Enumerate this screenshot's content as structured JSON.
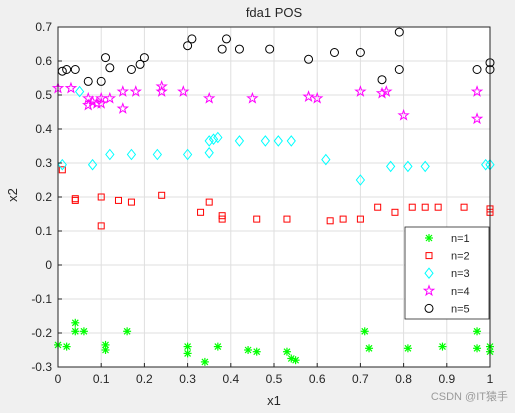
{
  "chart_data": {
    "type": "scatter",
    "title": "fda1 POS",
    "xlabel": "x1",
    "ylabel": "x2",
    "xlim": [
      0,
      1
    ],
    "ylim": [
      -0.3,
      0.7
    ],
    "xticks": [
      "0",
      "0.1",
      "0.2",
      "0.3",
      "0.4",
      "0.5",
      "0.6",
      "0.7",
      "0.8",
      "0.9",
      "1"
    ],
    "yticks": [
      "-0.3",
      "-0.2",
      "-0.1",
      "0",
      "0.1",
      "0.2",
      "0.3",
      "0.4",
      "0.5",
      "0.6",
      "0.7"
    ],
    "grid": true,
    "legend_position": "lower-right",
    "series": [
      {
        "name": "n=1",
        "marker": "asterisk",
        "color": "#00ff00",
        "x": [
          0.0,
          0.02,
          0.04,
          0.04,
          0.06,
          0.11,
          0.11,
          0.16,
          0.3,
          0.3,
          0.34,
          0.37,
          0.44,
          0.46,
          0.53,
          0.54,
          0.55,
          0.71,
          0.72,
          0.81,
          0.89,
          0.97,
          0.97,
          1.0,
          1.0
        ],
        "y": [
          -0.235,
          -0.24,
          -0.17,
          -0.195,
          -0.195,
          -0.235,
          -0.25,
          -0.195,
          -0.24,
          -0.26,
          -0.285,
          -0.24,
          -0.25,
          -0.255,
          -0.255,
          -0.275,
          -0.28,
          -0.195,
          -0.245,
          -0.245,
          -0.24,
          -0.195,
          -0.245,
          -0.24,
          -0.255
        ]
      },
      {
        "name": "n=2",
        "marker": "square",
        "color": "#ff0000",
        "x": [
          0.01,
          0.04,
          0.04,
          0.1,
          0.1,
          0.14,
          0.17,
          0.24,
          0.33,
          0.35,
          0.38,
          0.38,
          0.46,
          0.53,
          0.63,
          0.66,
          0.7,
          0.74,
          0.78,
          0.82,
          0.85,
          0.88,
          0.94,
          1.0,
          1.0
        ],
        "y": [
          0.28,
          0.19,
          0.195,
          0.115,
          0.2,
          0.19,
          0.185,
          0.205,
          0.155,
          0.185,
          0.135,
          0.145,
          0.135,
          0.135,
          0.13,
          0.135,
          0.135,
          0.17,
          0.155,
          0.17,
          0.17,
          0.17,
          0.17,
          0.155,
          0.165
        ]
      },
      {
        "name": "n=3",
        "marker": "diamond",
        "color": "#00ffff",
        "x": [
          0.01,
          0.05,
          0.08,
          0.12,
          0.17,
          0.23,
          0.3,
          0.35,
          0.35,
          0.36,
          0.37,
          0.42,
          0.48,
          0.51,
          0.54,
          0.62,
          0.7,
          0.77,
          0.81,
          0.85,
          0.99,
          1.0
        ],
        "y": [
          0.295,
          0.51,
          0.295,
          0.325,
          0.325,
          0.325,
          0.325,
          0.365,
          0.33,
          0.37,
          0.375,
          0.365,
          0.365,
          0.365,
          0.365,
          0.31,
          0.25,
          0.29,
          0.29,
          0.29,
          0.295,
          0.295
        ]
      },
      {
        "name": "n=4",
        "marker": "pentagram",
        "color": "#ff00ff",
        "x": [
          0.0,
          0.03,
          0.07,
          0.07,
          0.08,
          0.09,
          0.1,
          0.1,
          0.12,
          0.15,
          0.15,
          0.18,
          0.24,
          0.24,
          0.29,
          0.35,
          0.45,
          0.58,
          0.6,
          0.7,
          0.75,
          0.76,
          0.8,
          0.97,
          0.97
        ],
        "y": [
          0.52,
          0.52,
          0.47,
          0.49,
          0.48,
          0.475,
          0.475,
          0.49,
          0.49,
          0.46,
          0.51,
          0.51,
          0.525,
          0.51,
          0.51,
          0.49,
          0.49,
          0.495,
          0.49,
          0.51,
          0.505,
          0.51,
          0.44,
          0.51,
          0.43
        ]
      },
      {
        "name": "n=5",
        "marker": "circle",
        "color": "#000000",
        "x": [
          0.01,
          0.02,
          0.04,
          0.07,
          0.1,
          0.11,
          0.12,
          0.17,
          0.19,
          0.2,
          0.3,
          0.31,
          0.38,
          0.39,
          0.42,
          0.49,
          0.58,
          0.64,
          0.7,
          0.75,
          0.79,
          0.79,
          0.97,
          1.0,
          1.0
        ],
        "y": [
          0.57,
          0.575,
          0.575,
          0.54,
          0.54,
          0.61,
          0.58,
          0.575,
          0.59,
          0.61,
          0.645,
          0.665,
          0.635,
          0.665,
          0.635,
          0.635,
          0.605,
          0.625,
          0.625,
          0.545,
          0.575,
          0.685,
          0.575,
          0.575,
          0.595
        ]
      }
    ]
  },
  "watermark": "CSDN @IT猿手"
}
